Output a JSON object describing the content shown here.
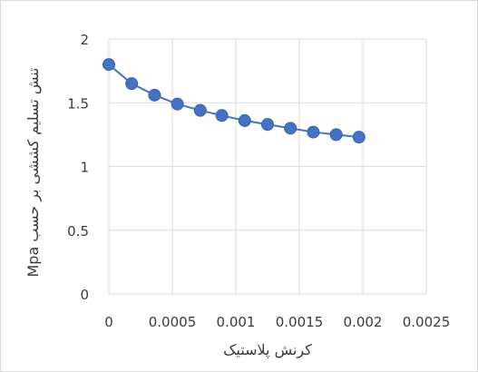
{
  "chart_data": {
    "type": "scatter",
    "title": "",
    "xlabel": "کرنش پلاستیک",
    "ylabel": "تنش تسلیم کششی بر حسب Mpa",
    "xlim": [
      0,
      0.0025
    ],
    "ylim": [
      0,
      2
    ],
    "x_ticks": [
      "0",
      "0.0005",
      "0.001",
      "0.0015",
      "0.002",
      "0.0025"
    ],
    "y_ticks": [
      "0",
      "0.5",
      "1",
      "1.5",
      "2"
    ],
    "grid": "vertical and horizontal major gridlines",
    "legend": "none",
    "series": [
      {
        "color": "#4472c4",
        "line": true,
        "markers": "circle",
        "x": [
          0,
          0.00018,
          0.00036,
          0.00054,
          0.00072,
          0.00089,
          0.00107,
          0.00125,
          0.00143,
          0.00161,
          0.00179,
          0.00197
        ],
        "y": [
          1.8,
          1.65,
          1.56,
          1.49,
          1.44,
          1.4,
          1.36,
          1.33,
          1.3,
          1.27,
          1.25,
          1.23
        ]
      }
    ]
  }
}
